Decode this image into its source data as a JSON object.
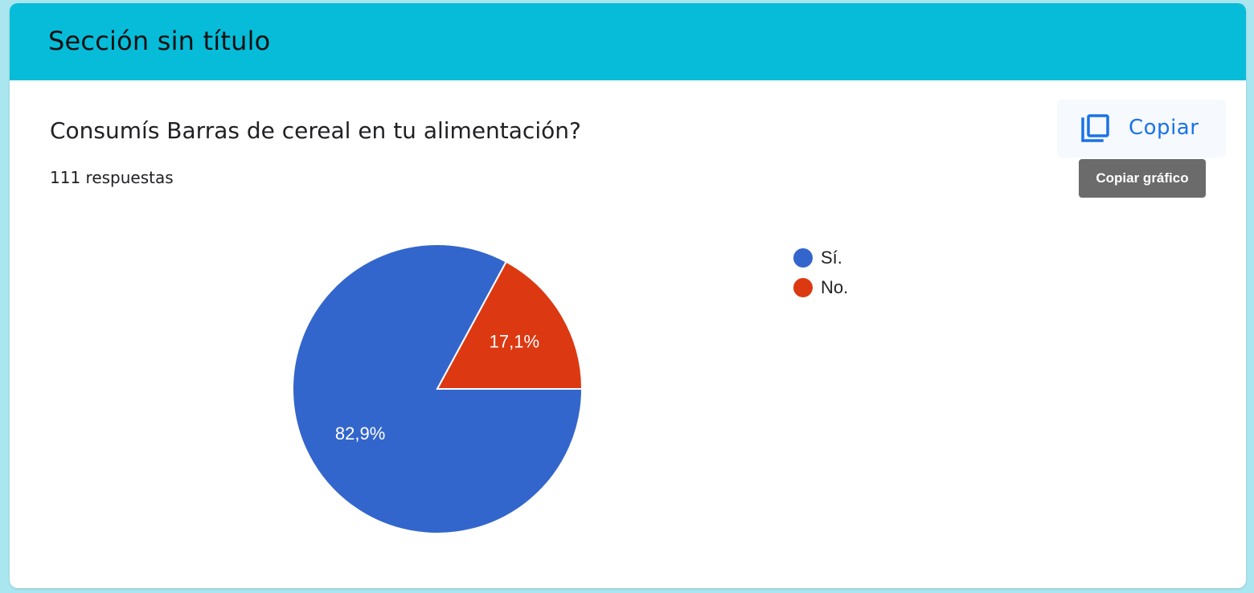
{
  "section": {
    "title": "Sección sin título"
  },
  "question": {
    "title": "Consumís Barras de cereal en tu alimentación?",
    "responses": "111 respuestas"
  },
  "copy": {
    "label": "Copiar",
    "tooltip": "Copiar gráfico"
  },
  "colors": {
    "header": "#06bcd9",
    "accent": "#1a73e8"
  },
  "icons": {
    "copy": "copy-icon"
  },
  "chart_data": {
    "type": "pie",
    "categories": [
      "Sí.",
      "No."
    ],
    "values": [
      82.9,
      17.1
    ],
    "labels": [
      "82,9%",
      "17,1%"
    ],
    "colors": [
      "#3366cc",
      "#dc3912"
    ],
    "legend_position": "right"
  }
}
